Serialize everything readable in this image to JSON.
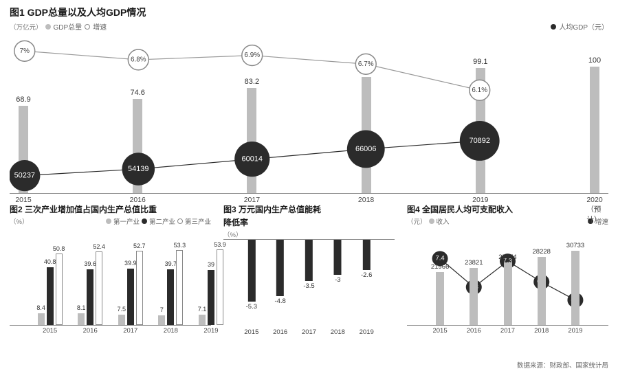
{
  "chart1": {
    "title": "图1 GDP总量以及人均GDP情况",
    "unit_left": "（万亿元）",
    "legend_total": "GDP总量",
    "legend_growth": "增速",
    "legend_percap": "人均GDP（元）",
    "categories": [
      "2015",
      "2016",
      "2017",
      "2018",
      "2019",
      "2020（预计）"
    ],
    "bar_values": [
      68.9,
      74.6,
      83.2,
      91.9,
      99.1,
      100
    ],
    "growth_values": [
      "7%",
      "6.8%",
      "6.9%",
      "6.7%",
      "6.1%"
    ],
    "percap_values": [
      50237,
      54139,
      60014,
      66006,
      70892
    ],
    "colors": {
      "bar": "#bdbdbd",
      "dark": "#2b2b2b",
      "hollow_border": "#888888"
    }
  },
  "chart2": {
    "title": "图2 三次产业增加值占国内生产总值比重",
    "unit": "（%）",
    "legend": [
      "第一产业",
      "第二产业",
      "第三产业"
    ],
    "categories": [
      "2015",
      "2016",
      "2017",
      "2018",
      "2019"
    ],
    "s1": [
      8.4,
      8.1,
      7.5,
      7,
      7.1
    ],
    "s2": [
      40.8,
      39.6,
      39.9,
      39.7,
      39
    ],
    "s3": [
      50.8,
      52.4,
      52.7,
      53.3,
      53.9
    ],
    "colors": {
      "s1": "#bdbdbd",
      "s2": "#2b2b2b",
      "s3_fill": "#ffffff",
      "s3_border": "#888888"
    }
  },
  "chart3": {
    "title": "图3 万元国内生产总值能耗",
    "subtitle2": "降低率",
    "unit": "（%）",
    "categories": [
      "2015",
      "2016",
      "2017",
      "2018",
      "2019"
    ],
    "values": [
      -5.3,
      -4.8,
      -3.5,
      -3,
      -2.6
    ],
    "bar_color": "#2b2b2b"
  },
  "chart4": {
    "title": "图4  全国居民人均可支配收入",
    "unit": "（元）",
    "legend_income": "收入",
    "legend_growth": "增速",
    "categories": [
      "2015",
      "2016",
      "2017",
      "2018",
      "2019"
    ],
    "income": [
      21966,
      23821,
      25974,
      28228,
      30733
    ],
    "growth": [
      7.4,
      6.3,
      7.3,
      6.5,
      5.8
    ],
    "colors": {
      "bar": "#bdbdbd",
      "dark": "#2b2b2b"
    }
  },
  "source": "数据来源：财政部、国家统计局"
}
